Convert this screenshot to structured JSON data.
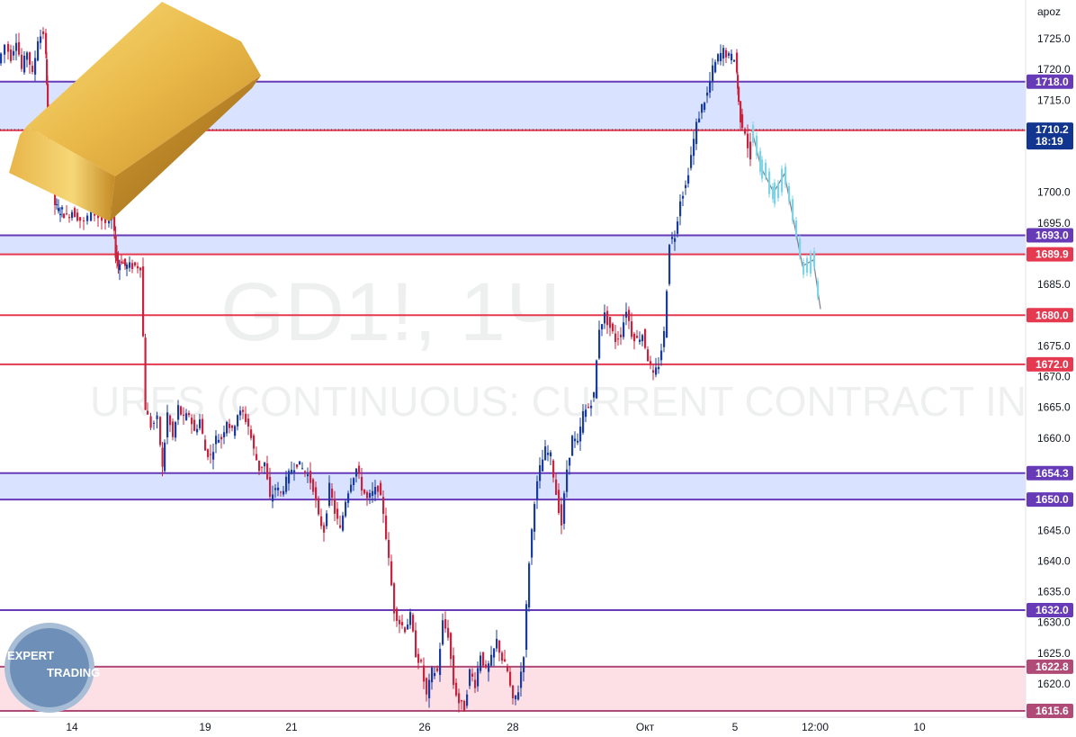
{
  "chart_data": {
    "type": "candlestick",
    "symbol": "GD1!, 1Ч",
    "subtitle": "URES (CONTINUOUS: CURRENT CONTRACT IN FRONT)",
    "currency_label": "apoz",
    "ylim": [
      1614,
      1730
    ],
    "y_ticks": [
      "1725.0",
      "1720.0",
      "1715.0",
      "1700.0",
      "1695.0",
      "1685.0",
      "1675.0",
      "1670.0",
      "1665.0",
      "1660.0",
      "1645.0",
      "1640.0",
      "1635.0",
      "1630.0",
      "1625.0",
      "1620.0"
    ],
    "x_ticks": [
      "14",
      "19",
      "21",
      "26",
      "28",
      "Окт",
      "5",
      "12:00",
      "10"
    ],
    "levels": [
      {
        "label": "1718.0",
        "value": 1718.0,
        "color": "#673ab7"
      },
      {
        "label": "1710.1",
        "value": 1710.1,
        "color": "#e53950"
      },
      {
        "label": "1693.0",
        "value": 1693.0,
        "color": "#673ab7"
      },
      {
        "label": "1689.9",
        "value": 1689.9,
        "color": "#e53950"
      },
      {
        "label": "1680.0",
        "value": 1680.0,
        "color": "#e53950"
      },
      {
        "label": "1672.0",
        "value": 1672.0,
        "color": "#e53950"
      },
      {
        "label": "1654.3",
        "value": 1654.3,
        "color": "#673ab7"
      },
      {
        "label": "1650.0",
        "value": 1650.0,
        "color": "#673ab7"
      },
      {
        "label": "1632.0",
        "value": 1632.0,
        "color": "#673ab7"
      },
      {
        "label": "1622.8",
        "value": 1622.8,
        "color": "#b04a76"
      },
      {
        "label": "1615.6",
        "value": 1615.6,
        "color": "#b04a76"
      }
    ],
    "zones": [
      {
        "from": 1710.1,
        "to": 1718.0,
        "color": "#c9d6ff"
      },
      {
        "from": 1689.9,
        "to": 1693.0,
        "color": "#c9d6ff"
      },
      {
        "from": 1650.0,
        "to": 1654.3,
        "color": "#c9d6ff"
      },
      {
        "from": 1615.6,
        "to": 1622.8,
        "color": "#fcd3da"
      }
    ],
    "current_price": {
      "label": "1710.2",
      "countdown": "18:19",
      "value": 1710.2
    },
    "path": [
      [
        0,
        1721
      ],
      [
        8,
        1724
      ],
      [
        14,
        1722
      ],
      [
        20,
        1725
      ],
      [
        26,
        1720
      ],
      [
        32,
        1723
      ],
      [
        38,
        1719
      ],
      [
        44,
        1725
      ],
      [
        50,
        1726
      ],
      [
        52,
        1718
      ],
      [
        54,
        1707
      ],
      [
        58,
        1703
      ],
      [
        62,
        1698
      ],
      [
        66,
        1697
      ],
      [
        70,
        1697
      ],
      [
        76,
        1696
      ],
      [
        82,
        1697
      ],
      [
        88,
        1696
      ],
      [
        96,
        1695
      ],
      [
        104,
        1697
      ],
      [
        112,
        1696
      ],
      [
        120,
        1695
      ],
      [
        126,
        1696
      ],
      [
        129,
        1690
      ],
      [
        132,
        1688
      ],
      [
        136,
        1689
      ],
      [
        140,
        1688
      ],
      [
        146,
        1688
      ],
      [
        152,
        1688
      ],
      [
        158,
        1688
      ],
      [
        163,
        1665
      ],
      [
        170,
        1662
      ],
      [
        177,
        1663
      ],
      [
        182,
        1655
      ],
      [
        188,
        1664
      ],
      [
        194,
        1660
      ],
      [
        200,
        1665
      ],
      [
        206,
        1663
      ],
      [
        212,
        1664
      ],
      [
        218,
        1661
      ],
      [
        224,
        1663
      ],
      [
        230,
        1658
      ],
      [
        236,
        1657
      ],
      [
        242,
        1660
      ],
      [
        248,
        1660
      ],
      [
        254,
        1663
      ],
      [
        260,
        1661
      ],
      [
        266,
        1664
      ],
      [
        272,
        1664
      ],
      [
        278,
        1662
      ],
      [
        284,
        1658
      ],
      [
        290,
        1655
      ],
      [
        296,
        1656
      ],
      [
        302,
        1650
      ],
      [
        308,
        1652
      ],
      [
        314,
        1651
      ],
      [
        320,
        1653
      ],
      [
        326,
        1655
      ],
      [
        332,
        1656
      ],
      [
        338,
        1655
      ],
      [
        344,
        1654
      ],
      [
        350,
        1652
      ],
      [
        356,
        1647
      ],
      [
        362,
        1645
      ],
      [
        368,
        1652
      ],
      [
        374,
        1648
      ],
      [
        380,
        1645
      ],
      [
        386,
        1650
      ],
      [
        392,
        1653
      ],
      [
        398,
        1655
      ],
      [
        404,
        1652
      ],
      [
        410,
        1650
      ],
      [
        416,
        1651
      ],
      [
        422,
        1652
      ],
      [
        428,
        1648
      ],
      [
        434,
        1640
      ],
      [
        440,
        1632
      ],
      [
        446,
        1630
      ],
      [
        452,
        1629
      ],
      [
        458,
        1631
      ],
      [
        464,
        1625
      ],
      [
        470,
        1623
      ],
      [
        476,
        1618
      ],
      [
        482,
        1622
      ],
      [
        488,
        1622
      ],
      [
        494,
        1630
      ],
      [
        500,
        1628
      ],
      [
        506,
        1620
      ],
      [
        512,
        1617
      ],
      [
        518,
        1616
      ],
      [
        524,
        1622
      ],
      [
        530,
        1620
      ],
      [
        536,
        1625
      ],
      [
        542,
        1622
      ],
      [
        548,
        1624
      ],
      [
        554,
        1627
      ],
      [
        560,
        1624
      ],
      [
        566,
        1622
      ],
      [
        572,
        1617
      ],
      [
        578,
        1619
      ],
      [
        584,
        1625
      ],
      [
        590,
        1640
      ],
      [
        596,
        1650
      ],
      [
        602,
        1655
      ],
      [
        608,
        1658
      ],
      [
        614,
        1657
      ],
      [
        620,
        1651
      ],
      [
        626,
        1646
      ],
      [
        632,
        1655
      ],
      [
        638,
        1660
      ],
      [
        644,
        1659
      ],
      [
        650,
        1664
      ],
      [
        656,
        1665
      ],
      [
        662,
        1667
      ],
      [
        668,
        1678
      ],
      [
        674,
        1680
      ],
      [
        680,
        1678
      ],
      [
        686,
        1676
      ],
      [
        692,
        1677
      ],
      [
        698,
        1681
      ],
      [
        704,
        1677
      ],
      [
        710,
        1676
      ],
      [
        716,
        1677
      ],
      [
        722,
        1673
      ],
      [
        728,
        1670
      ],
      [
        734,
        1672
      ],
      [
        740,
        1677
      ],
      [
        746,
        1692
      ],
      [
        752,
        1693
      ],
      [
        758,
        1699
      ],
      [
        764,
        1701
      ],
      [
        770,
        1706
      ],
      [
        776,
        1711
      ],
      [
        782,
        1714
      ],
      [
        788,
        1716
      ],
      [
        794,
        1720
      ],
      [
        800,
        1722
      ],
      [
        806,
        1723
      ],
      [
        812,
        1722
      ],
      [
        818,
        1722
      ],
      [
        820,
        1717
      ],
      [
        824,
        1712
      ],
      [
        830,
        1710
      ],
      [
        836,
        1705
      ]
    ],
    "projection": [
      [
        836,
        1710
      ],
      [
        846,
        1704
      ],
      [
        860,
        1700
      ],
      [
        872,
        1703
      ],
      [
        880,
        1697
      ],
      [
        892,
        1688
      ],
      [
        904,
        1689
      ],
      [
        912,
        1681
      ]
    ]
  },
  "branding": {
    "logo_line1": "EXPERT",
    "logo_line2": "TRADING"
  }
}
